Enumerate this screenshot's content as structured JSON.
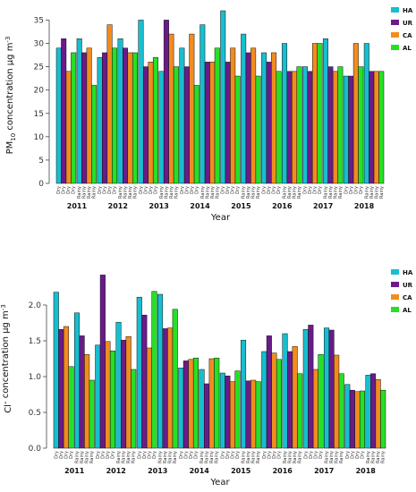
{
  "chart_data": [
    {
      "type": "bar",
      "title": "",
      "ylabel_main": "PM",
      "ylabel_sub": "10",
      "ylabel_rest": " concentration µg m",
      "ylabel_sup": "-3",
      "xlabel": "Year",
      "ylim": [
        0,
        37
      ],
      "yticks": [
        0,
        5,
        10,
        15,
        20,
        25,
        30,
        35
      ],
      "grid": false,
      "legend_position": "top-right",
      "categories": [
        "Dry",
        "Rainy",
        "Dry",
        "Rainy",
        "Dry",
        "Rainy",
        "Dry",
        "Rainy",
        "Dry",
        "Rainy",
        "Dry",
        "Rainy",
        "Dry",
        "Rainy",
        "Dry",
        "Rainy"
      ],
      "year_labels": [
        "2011",
        "2012",
        "2013",
        "2014",
        "2015",
        "2016",
        "2017",
        "2018"
      ],
      "series": [
        {
          "name": "HA",
          "color": "#17BECF",
          "values": [
            29,
            31,
            27,
            31,
            35,
            24,
            29,
            34,
            37,
            32,
            28,
            30,
            25,
            31,
            23,
            30
          ]
        },
        {
          "name": "UR",
          "color": "#6A1B8A",
          "values": [
            31,
            28,
            28,
            29,
            25,
            35,
            25,
            26,
            26,
            28,
            26,
            24,
            24,
            25,
            23,
            24
          ]
        },
        {
          "name": "CA",
          "color": "#F28C1E",
          "values": [
            24,
            29,
            34,
            28,
            26,
            32,
            32,
            26,
            29,
            29,
            28,
            24,
            30,
            24,
            30,
            24
          ]
        },
        {
          "name": "AL",
          "color": "#26E026",
          "values": [
            28,
            21,
            29,
            28,
            27,
            25,
            21,
            29,
            23,
            23,
            24,
            25,
            30,
            25,
            25,
            24
          ]
        }
      ]
    },
    {
      "type": "bar",
      "title": "",
      "ylabel_main": "Cl",
      "ylabel_sub": "",
      "ylabel_rest": "- concentration µg m",
      "ylabel_sup": "-3",
      "xlabel": "Year",
      "ylim": [
        0,
        2.45
      ],
      "yticks": [
        0.0,
        0.5,
        1.0,
        1.5,
        2.0
      ],
      "grid": false,
      "legend_position": "top-right",
      "categories": [
        "Dry",
        "Rainy",
        "Dry",
        "Rainy",
        "Dry",
        "Rainy",
        "Dry",
        "Rainy",
        "Dry",
        "Rainy",
        "Dry",
        "Rainy",
        "Dry",
        "Rainy",
        "Dry",
        "Rainy"
      ],
      "year_labels": [
        "2011",
        "2012",
        "2013",
        "2014",
        "2015",
        "2016",
        "2017",
        "2018"
      ],
      "series": [
        {
          "name": "HA",
          "color": "#17BECF",
          "values": [
            2.18,
            1.89,
            1.44,
            1.76,
            2.11,
            2.15,
            1.12,
            1.1,
            1.05,
            1.51,
            1.35,
            1.6,
            1.66,
            1.68,
            0.89,
            1.02
          ]
        },
        {
          "name": "UR",
          "color": "#6A1B8A",
          "values": [
            1.66,
            1.57,
            2.42,
            1.51,
            1.86,
            1.67,
            1.22,
            0.9,
            1.01,
            0.94,
            1.57,
            1.35,
            1.72,
            1.65,
            0.81,
            1.04
          ]
        },
        {
          "name": "CA",
          "color": "#F28C1E",
          "values": [
            1.7,
            1.31,
            1.49,
            1.56,
            1.4,
            1.68,
            1.24,
            1.25,
            0.93,
            0.95,
            1.33,
            1.42,
            1.1,
            1.3,
            0.79,
            0.96
          ]
        },
        {
          "name": "AL",
          "color": "#26E026",
          "values": [
            1.14,
            0.95,
            1.36,
            1.1,
            2.19,
            1.94,
            1.26,
            1.26,
            1.08,
            0.93,
            1.24,
            1.04,
            1.31,
            1.04,
            0.8,
            0.81
          ]
        }
      ]
    }
  ]
}
